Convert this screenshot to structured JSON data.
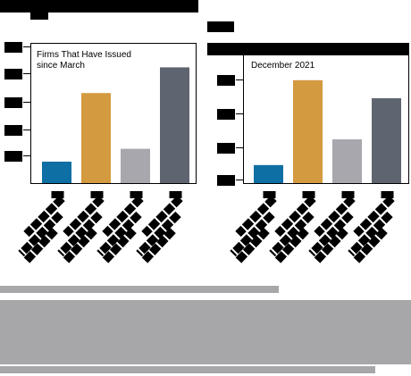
{
  "colors": {
    "blue": "#0d6fa3",
    "gold": "#d49a3f",
    "lightgray": "#a7a7ad",
    "darkgray": "#5f6570",
    "redaction": "#000000",
    "caption_gray": "#a7a7aa"
  },
  "chart_data": [
    {
      "type": "bar",
      "title": "Firms That Have Issued\nsince March",
      "categories": [
        "",
        "",
        "",
        ""
      ],
      "values": [
        25,
        105,
        40,
        135
      ],
      "ylim": [
        0,
        150
      ],
      "grid": false,
      "colors": [
        "#0d6fa3",
        "#d49a3f",
        "#a7a7ad",
        "#5f6570"
      ]
    },
    {
      "type": "bar",
      "title": "December 2021",
      "categories": [
        "",
        "",
        "",
        ""
      ],
      "values": [
        7,
        40,
        17,
        33
      ],
      "ylim": [
        0,
        50
      ],
      "grid": false,
      "colors": [
        "#0d6fa3",
        "#d49a3f",
        "#a7a7ad",
        "#5f6570"
      ]
    }
  ]
}
